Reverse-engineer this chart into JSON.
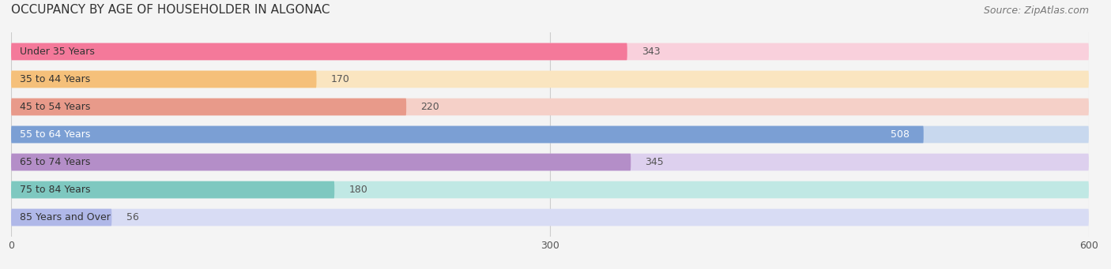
{
  "title": "OCCUPANCY BY AGE OF HOUSEHOLDER IN ALGONAC",
  "source": "Source: ZipAtlas.com",
  "categories": [
    "Under 35 Years",
    "35 to 44 Years",
    "45 to 54 Years",
    "55 to 64 Years",
    "65 to 74 Years",
    "75 to 84 Years",
    "85 Years and Over"
  ],
  "values": [
    343,
    170,
    220,
    508,
    345,
    180,
    56
  ],
  "bar_colors": [
    "#F4799A",
    "#F5C07A",
    "#E89A8A",
    "#7B9FD4",
    "#B48EC8",
    "#7EC8C0",
    "#B0B8E8"
  ],
  "bar_bg_colors": [
    "#F9D0DC",
    "#FAE5C0",
    "#F5D0C8",
    "#C8D8EE",
    "#DDD0EE",
    "#C0E8E4",
    "#D8DCF4"
  ],
  "value_label_color_inside": [
    "#FFFFFF"
  ],
  "xlim": [
    0,
    600
  ],
  "xticks": [
    0,
    300,
    600
  ],
  "bar_height": 0.6,
  "title_fontsize": 11,
  "source_fontsize": 9,
  "label_fontsize": 9,
  "tick_fontsize": 9,
  "background_color": "#F4F4F4"
}
